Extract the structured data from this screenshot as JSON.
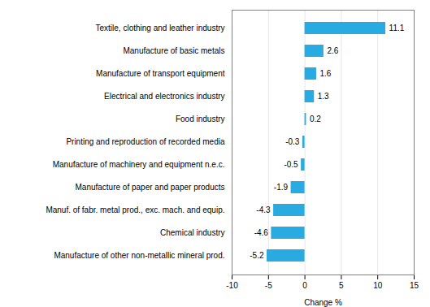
{
  "chart_data": {
    "type": "bar",
    "orientation": "horizontal",
    "categories": [
      "Manufacture of other non-metallic mineral prod.",
      "Chemical industry",
      "Manuf. of fabr. metal prod., exc. mach. and equip.",
      "Manufacture of paper and paper products",
      "Manufacture of machinery and equipment n.e.c.",
      "Printing and reproduction of recorded media",
      "Food industry",
      "Electrical and electronics industry",
      "Manufacture of transport equipment",
      "Manufacture of basic metals",
      "Textile, clothing and leather industry"
    ],
    "values": [
      -5.2,
      -4.6,
      -4.3,
      -1.9,
      -0.5,
      -0.3,
      0.2,
      1.3,
      1.6,
      2.6,
      11.1
    ],
    "color": "#29abe2",
    "xlabel": "Change %",
    "xlim": [
      -10,
      15
    ],
    "xticks": [
      -10,
      -5,
      0,
      5,
      10,
      15
    ],
    "grid": true,
    "data_labels": true
  }
}
